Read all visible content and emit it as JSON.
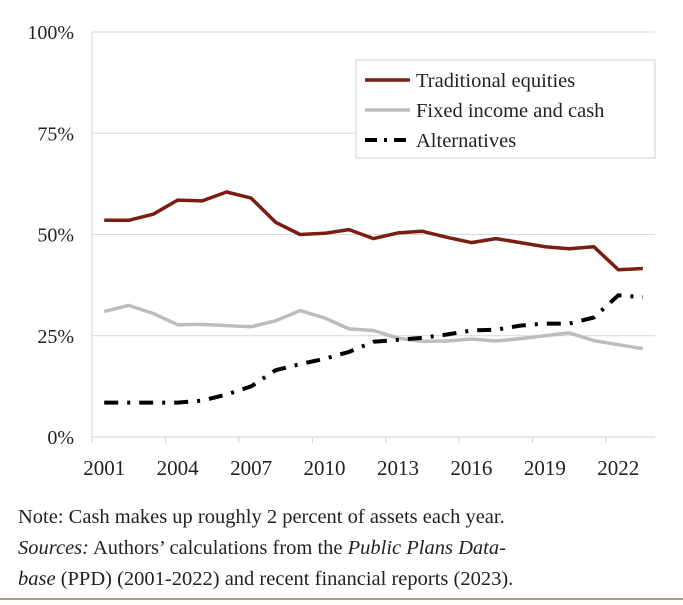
{
  "chart_data": {
    "type": "line",
    "title": "",
    "xlabel": "",
    "ylabel": "",
    "x": [
      2001,
      2002,
      2003,
      2004,
      2005,
      2006,
      2007,
      2008,
      2009,
      2010,
      2011,
      2012,
      2013,
      2014,
      2015,
      2016,
      2017,
      2018,
      2019,
      2020,
      2021,
      2022,
      2023
    ],
    "x_tick_labels": [
      "2001",
      "2004",
      "2007",
      "2010",
      "2013",
      "2016",
      "2019",
      "2022"
    ],
    "y_tick_labels": [
      "0%",
      "25%",
      "50%",
      "75%",
      "100%"
    ],
    "ylim": [
      0,
      100
    ],
    "grid": "horizontal",
    "legend_position": "top-right",
    "series": [
      {
        "name": "Traditional equities",
        "color": "#7a1e12",
        "style": "solid",
        "values": [
          53.5,
          53.5,
          55,
          58.5,
          58.3,
          60.5,
          59,
          53,
          50,
          50.3,
          51.2,
          49,
          50.4,
          50.8,
          49.3,
          48,
          49,
          48,
          47,
          46.5,
          47,
          41.3,
          41.6
        ]
      },
      {
        "name": "Fixed income and cash",
        "color": "#bdbdbd",
        "style": "solid",
        "values": [
          31,
          32.5,
          30.5,
          27.7,
          27.8,
          27.5,
          27.2,
          28.7,
          31.2,
          29.4,
          26.7,
          26.3,
          24.4,
          23.6,
          23.7,
          24.2,
          23.7,
          24.3,
          25,
          25.7,
          23.8,
          22.8,
          21.8
        ]
      },
      {
        "name": "Alternatives",
        "color": "#000000",
        "style": "dashdot",
        "values": [
          8.5,
          8.5,
          8.5,
          8.5,
          9,
          10.5,
          12.5,
          16.5,
          18,
          19.3,
          21,
          23.5,
          24,
          24.5,
          25.3,
          26.3,
          26.5,
          27.5,
          28,
          28,
          29.5,
          35,
          34.5
        ]
      }
    ]
  },
  "note": {
    "line1": "Note: Cash makes up roughly 2 percent of assets each year.",
    "sources_label": "Sources:",
    "line2_a": " Authors’ calculations from the ",
    "line2_italic": "Public Plans Data-",
    "line3_italic": "base",
    "line3_b": " (PPD) (2001-2022) and recent financial reports (2023)."
  }
}
